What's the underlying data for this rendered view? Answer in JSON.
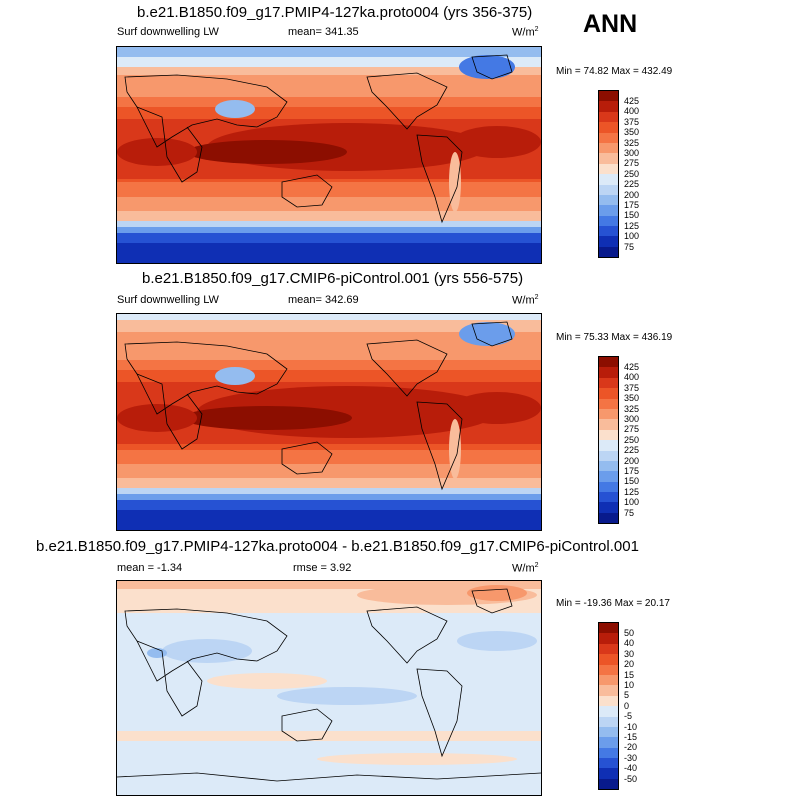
{
  "header": {
    "season": "ANN"
  },
  "panels": [
    {
      "title": "b.e21.B1850.f09_g17.PMIP4-127ka.proto004 (yrs 356-375)",
      "field_label": "Surf downwelling LW",
      "stat1": "mean= 341.35",
      "stat2": "",
      "units": "W/m",
      "units_exp": "2",
      "minmax": "Min =  74.82 Max = 432.49",
      "colorbar": {
        "levels": [
          "425",
          "400",
          "375",
          "350",
          "325",
          "300",
          "275",
          "250",
          "225",
          "200",
          "175",
          "150",
          "125",
          "100",
          "75"
        ],
        "colors": [
          "#8c0e00",
          "#b81d0a",
          "#d9381a",
          "#ec5527",
          "#f47444",
          "#f7986c",
          "#f9bc9b",
          "#fbe0cc",
          "#dceaf8",
          "#bcd5f4",
          "#94bcef",
          "#6b9deb",
          "#4479e4",
          "#2652d3",
          "#0f2fb4",
          "#081a8c"
        ]
      }
    },
    {
      "title": "b.e21.B1850.f09_g17.CMIP6-piControl.001 (yrs 556-575)",
      "field_label": "Surf downwelling LW",
      "stat1": "mean= 342.69",
      "stat2": "",
      "units": "W/m",
      "units_exp": "2",
      "minmax": "Min =  75.33 Max = 436.19",
      "colorbar": {
        "levels": [
          "425",
          "400",
          "375",
          "350",
          "325",
          "300",
          "275",
          "250",
          "225",
          "200",
          "175",
          "150",
          "125",
          "100",
          "75"
        ],
        "colors": [
          "#8c0e00",
          "#b81d0a",
          "#d9381a",
          "#ec5527",
          "#f47444",
          "#f7986c",
          "#f9bc9b",
          "#fbe0cc",
          "#dceaf8",
          "#bcd5f4",
          "#94bcef",
          "#6b9deb",
          "#4479e4",
          "#2652d3",
          "#0f2fb4",
          "#081a8c"
        ]
      }
    },
    {
      "title": "b.e21.B1850.f09_g17.PMIP4-127ka.proto004 - b.e21.B1850.f09_g17.CMIP6-piControl.001",
      "field_label": "",
      "stat1": "mean =  -1.34",
      "stat2": "rmse =   3.92",
      "units": "W/m",
      "units_exp": "2",
      "minmax": "Min = -19.36 Max =  20.17",
      "colorbar": {
        "levels": [
          "50",
          "40",
          "30",
          "20",
          "15",
          "10",
          "5",
          "0",
          "-5",
          "-10",
          "-15",
          "-20",
          "-30",
          "-40",
          "-50"
        ],
        "colors": [
          "#8c0e00",
          "#b81d0a",
          "#d9381a",
          "#ec5527",
          "#f47444",
          "#f7986c",
          "#f9bc9b",
          "#fbe0cc",
          "#dceaf8",
          "#bcd5f4",
          "#94bcef",
          "#6b9deb",
          "#4479e4",
          "#2652d3",
          "#0f2fb4",
          "#081a8c"
        ]
      }
    }
  ]
}
